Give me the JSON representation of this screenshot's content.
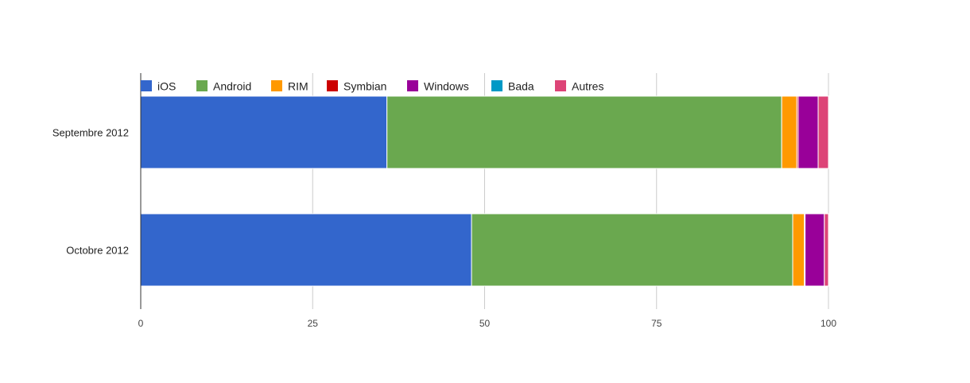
{
  "chart_data": {
    "type": "bar",
    "orientation": "horizontal",
    "stacked": true,
    "categories": [
      "Septembre 2012",
      "Octobre 2012"
    ],
    "series": [
      {
        "name": "iOS",
        "color": "#3366cc",
        "values": [
          35.8,
          48.1
        ]
      },
      {
        "name": "Android",
        "color": "#6aa84f",
        "values": [
          57.4,
          46.7
        ]
      },
      {
        "name": "RIM",
        "color": "#ff9900",
        "values": [
          2.2,
          1.7
        ]
      },
      {
        "name": "Symbian",
        "color": "#cc0000",
        "values": [
          0.2,
          0.1
        ]
      },
      {
        "name": "Windows",
        "color": "#990099",
        "values": [
          2.9,
          2.8
        ]
      },
      {
        "name": "Bada",
        "color": "#0099c6",
        "values": [
          0.0,
          0.0
        ]
      },
      {
        "name": "Autres",
        "color": "#dd4477",
        "values": [
          1.5,
          0.6
        ]
      }
    ],
    "xlim": [
      0,
      100
    ],
    "xticks": [
      0,
      25,
      50,
      75,
      100
    ],
    "grid": true,
    "legend_position": "top"
  }
}
